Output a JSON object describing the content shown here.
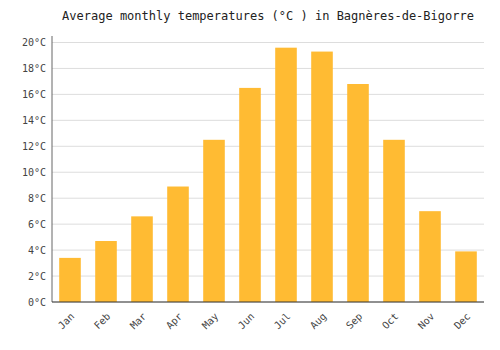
{
  "chart_data": {
    "type": "bar",
    "title": "Average monthly temperatures (°C ) in Bagnères-de-Bigorre",
    "categories": [
      "Jan",
      "Feb",
      "Mar",
      "Apr",
      "May",
      "Jun",
      "Jul",
      "Aug",
      "Sep",
      "Oct",
      "Nov",
      "Dec"
    ],
    "values": [
      3.4,
      4.7,
      6.6,
      8.9,
      12.5,
      16.5,
      19.6,
      19.3,
      16.8,
      12.5,
      7.0,
      3.9
    ],
    "color": "#FFBB33",
    "ylim": [
      0,
      20.5
    ],
    "yticks": [
      {
        "value": 0,
        "label": "0°C"
      },
      {
        "value": 2,
        "label": "2°C"
      },
      {
        "value": 4,
        "label": "4°C"
      },
      {
        "value": 6,
        "label": "6°C"
      },
      {
        "value": 8,
        "label": "8°C"
      },
      {
        "value": 10,
        "label": "10°C"
      },
      {
        "value": 12,
        "label": "12°C"
      },
      {
        "value": 14,
        "label": "14°C"
      },
      {
        "value": 16,
        "label": "16°C"
      },
      {
        "value": 18,
        "label": "18°C"
      },
      {
        "value": 20,
        "label": "20°C"
      }
    ],
    "grid": true
  }
}
